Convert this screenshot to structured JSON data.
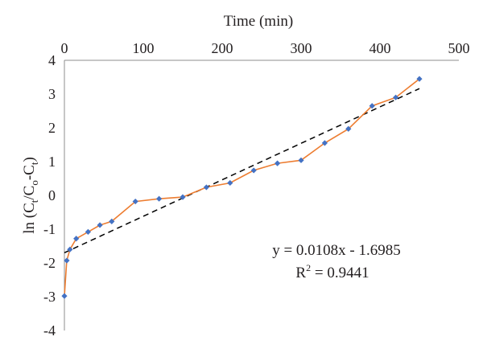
{
  "chart_data": {
    "type": "scatter",
    "xlabel": "Time (min)",
    "ylabel_parts": [
      "ln (C",
      "t",
      "/C",
      "o",
      "-C",
      "t",
      ")"
    ],
    "xlim": [
      0,
      500
    ],
    "ylim": [
      -4,
      4
    ],
    "x_ticks": [
      "0",
      "100",
      "200",
      "300",
      "400",
      "500"
    ],
    "y_ticks": [
      "4",
      "3",
      "2",
      "1",
      "0",
      "-1",
      "-2",
      "-3",
      "-4"
    ],
    "x_axis_position": "top",
    "grid": false,
    "series": [
      {
        "marker_color": "#4472c4",
        "line_color": "#ed7d31",
        "points": [
          [
            0,
            -2.98
          ],
          [
            3,
            -1.93
          ],
          [
            7,
            -1.6
          ],
          [
            15,
            -1.28
          ],
          [
            30,
            -1.08
          ],
          [
            45,
            -0.88
          ],
          [
            60,
            -0.77
          ],
          [
            90,
            -0.18
          ],
          [
            120,
            -0.1
          ],
          [
            150,
            -0.05
          ],
          [
            180,
            0.24
          ],
          [
            210,
            0.37
          ],
          [
            240,
            0.74
          ],
          [
            270,
            0.95
          ],
          [
            300,
            1.04
          ],
          [
            330,
            1.55
          ],
          [
            360,
            1.97
          ],
          [
            390,
            2.65
          ],
          [
            420,
            2.9
          ],
          [
            450,
            3.45
          ]
        ]
      }
    ],
    "trendline": {
      "slope": 0.0108,
      "intercept": -1.6985,
      "x_range": [
        0,
        450
      ],
      "style": "dashed",
      "color": "#000000"
    },
    "annotation": {
      "equation": "y = 0.0108x - 1.6985",
      "r2_prefix": "R",
      "r2_sup": "2",
      "r2_value": " = 0.9441"
    }
  }
}
